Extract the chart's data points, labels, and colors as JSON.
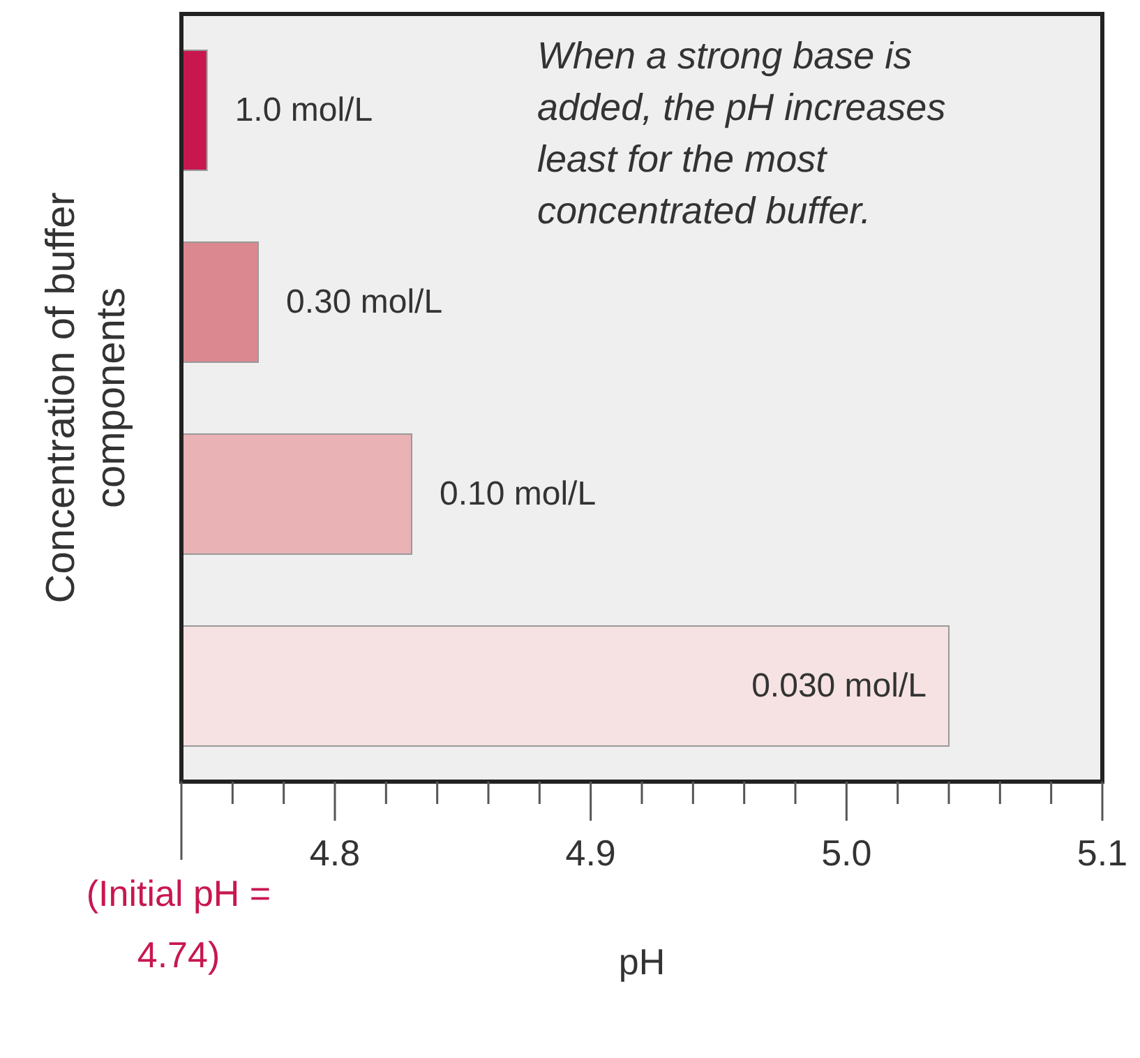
{
  "chart_data": {
    "type": "bar",
    "orientation": "horizontal",
    "ylabel": "Concentration of buffer components",
    "xlabel": "pH",
    "categories": [
      "1.0 mol/L",
      "0.30 mol/L",
      "0.10 mol/L",
      "0.030 mol/L"
    ],
    "values": [
      4.75,
      4.77,
      4.83,
      5.04
    ],
    "colors": [
      "#c8174f",
      "#dc8890",
      "#e9b3b6",
      "#f6e2e2"
    ],
    "xlim": [
      4.74,
      5.1
    ],
    "xticks": [
      {
        "value": 4.74,
        "label": null
      },
      {
        "value": 4.76,
        "label": null
      },
      {
        "value": 4.78,
        "label": null
      },
      {
        "value": 4.8,
        "label": "4.8"
      },
      {
        "value": 4.82,
        "label": null
      },
      {
        "value": 4.84,
        "label": null
      },
      {
        "value": 4.86,
        "label": null
      },
      {
        "value": 4.88,
        "label": null
      },
      {
        "value": 4.9,
        "label": "4.9"
      },
      {
        "value": 4.92,
        "label": null
      },
      {
        "value": 4.94,
        "label": null
      },
      {
        "value": 4.96,
        "label": null
      },
      {
        "value": 4.98,
        "label": null
      },
      {
        "value": 5.0,
        "label": "5.0"
      },
      {
        "value": 5.02,
        "label": null
      },
      {
        "value": 5.04,
        "label": null
      },
      {
        "value": 5.06,
        "label": null
      },
      {
        "value": 5.08,
        "label": null
      },
      {
        "value": 5.1,
        "label": "5.1"
      }
    ],
    "tick_labels": "x",
    "grid": false,
    "legend": false,
    "annotations": [
      "When a strong base is added, the pH increases least for the most concentrated buffer.",
      "(Initial pH = 4.74)"
    ]
  }
}
